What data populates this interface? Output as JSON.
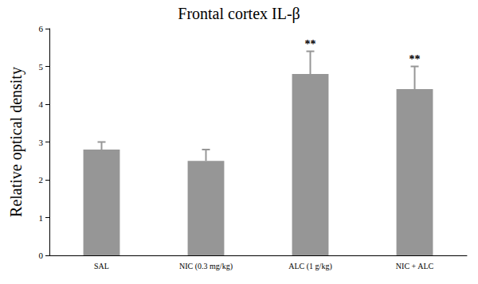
{
  "chart_data": {
    "type": "bar",
    "title": "Frontal cortex IL-β",
    "y_label": "Relative optical density",
    "categories": [
      "SAL",
      "NIC (0.3 mg/kg)",
      "ALC (1 g/kg)",
      "NIC + ALC"
    ],
    "values": [
      2.8,
      2.5,
      4.8,
      4.4
    ],
    "errors": [
      0.2,
      0.3,
      0.6,
      0.6
    ],
    "annotations": [
      null,
      null,
      "**",
      "**"
    ],
    "color": "#969696",
    "ylim": [
      0,
      6
    ],
    "yticks": [
      0,
      1,
      2,
      3,
      4,
      5,
      6
    ],
    "grid": false
  }
}
